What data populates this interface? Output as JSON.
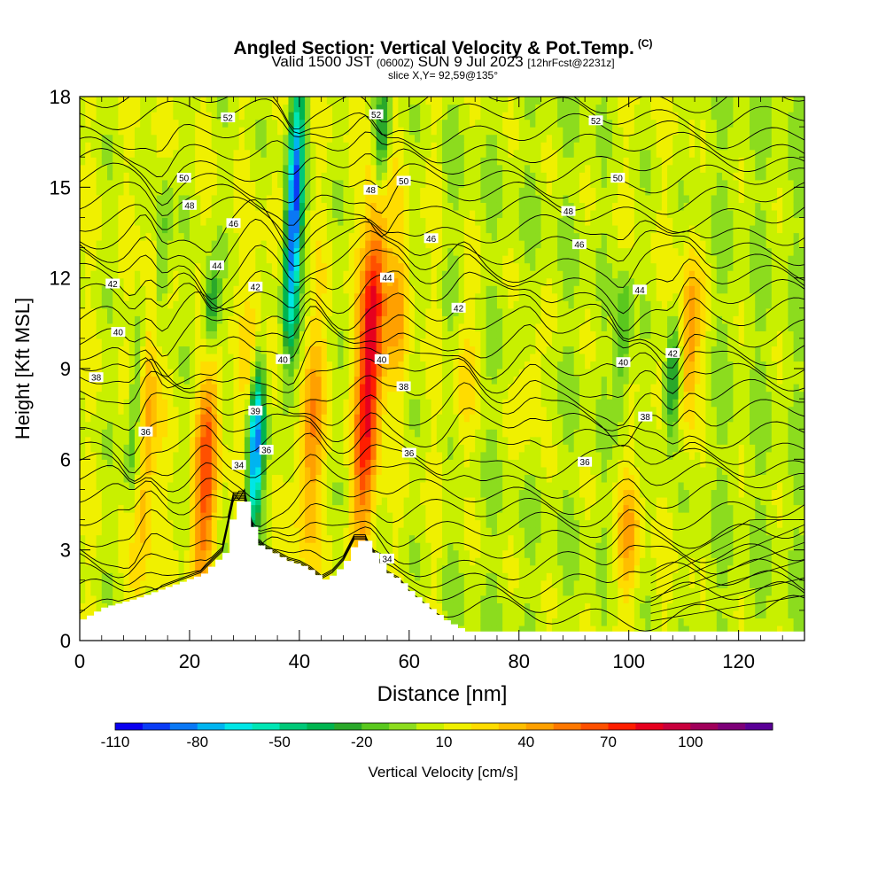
{
  "title": "Angled Section: Vertical Velocity & Pot.Temp.",
  "title_mark": "(C)",
  "subtitle_valid": "Valid 1500 JST",
  "subtitle_utc": "(0600Z)",
  "subtitle_date": "SUN 9 Jul 2023",
  "subtitle_fcst": "[12hrFcst@2231z]",
  "slice_label": "slice X,Y= 92,59@135°",
  "colorbar_title": "Vertical Velocity [cm/s]",
  "chart_data": {
    "type": "heatmap",
    "xlabel": "Distance [nm]",
    "ylabel": "Height [Kft MSL]",
    "xlim": [
      0,
      132
    ],
    "ylim": [
      0,
      18
    ],
    "x_ticks": [
      "0",
      "20",
      "40",
      "60",
      "80",
      "100",
      "120"
    ],
    "y_ticks": [
      "0",
      "3",
      "6",
      "9",
      "12",
      "15",
      "18"
    ],
    "colorbar": {
      "levels": [
        -110,
        -100,
        -90,
        -80,
        -70,
        -60,
        -50,
        -40,
        -30,
        -20,
        -10,
        0,
        10,
        20,
        30,
        40,
        50,
        60,
        70,
        80,
        90,
        100,
        110,
        120
      ],
      "colors": [
        "#0a00f0",
        "#0a3cf5",
        "#0a78f5",
        "#00b4f0",
        "#00e6e6",
        "#00e6b4",
        "#00c878",
        "#00b450",
        "#2aa82a",
        "#5ac81e",
        "#8cdc1e",
        "#c8f000",
        "#f0f000",
        "#ffdc00",
        "#ffbe00",
        "#ffa000",
        "#ff7800",
        "#ff5000",
        "#ff1e00",
        "#e6001e",
        "#c8003c",
        "#a0005a",
        "#7d0078",
        "#5a0096"
      ],
      "tick_labels": [
        "-110",
        "-80",
        "-50",
        "-20",
        "10",
        "40",
        "70",
        "100"
      ]
    },
    "terrain_kft": [
      [
        0,
        0.7
      ],
      [
        4,
        1.1
      ],
      [
        10,
        1.4
      ],
      [
        16,
        1.8
      ],
      [
        22,
        2.2
      ],
      [
        26,
        2.9
      ],
      [
        28,
        4.6
      ],
      [
        30,
        4.6
      ],
      [
        32,
        3.2
      ],
      [
        35,
        2.9
      ],
      [
        38,
        2.6
      ],
      [
        40,
        2.5
      ],
      [
        42,
        2.3
      ],
      [
        44,
        2.0
      ],
      [
        46,
        2.2
      ],
      [
        48,
        2.6
      ],
      [
        50,
        3.3
      ],
      [
        52,
        3.3
      ],
      [
        54,
        2.7
      ],
      [
        56,
        2.2
      ],
      [
        58,
        2.0
      ],
      [
        60,
        1.6
      ],
      [
        62,
        1.3
      ],
      [
        64,
        1.0
      ],
      [
        66,
        0.7
      ],
      [
        68,
        0.5
      ],
      [
        70,
        0.3
      ],
      [
        71,
        0.3
      ]
    ],
    "updrafts": [
      {
        "x": 12,
        "z0": 2,
        "z1": 12,
        "w": 40
      },
      {
        "x": 23,
        "z0": 2,
        "z1": 9,
        "w": 55
      },
      {
        "x": 32,
        "z0": 6,
        "z1": 12,
        "w": 30
      },
      {
        "x": 42,
        "z0": 3,
        "z1": 10,
        "w": 40
      },
      {
        "x": 53,
        "z0": 4,
        "z1": 15,
        "w": 85
      },
      {
        "x": 58,
        "z0": 9,
        "z1": 13,
        "w": 30
      },
      {
        "x": 70,
        "z0": 6,
        "z1": 11,
        "w": 20
      },
      {
        "x": 82,
        "z0": 7,
        "z1": 10,
        "w": 20
      },
      {
        "x": 100,
        "z0": 2,
        "z1": 5,
        "w": 30
      },
      {
        "x": 111,
        "z0": 8,
        "z1": 12,
        "w": 45
      }
    ],
    "downdrafts": [
      {
        "x": 10,
        "z0": 4,
        "z1": 10,
        "w": -30
      },
      {
        "x": 15,
        "z0": 10,
        "z1": 15,
        "w": -25
      },
      {
        "x": 24,
        "z0": 10,
        "z1": 12,
        "w": -45
      },
      {
        "x": 32,
        "z0": 4,
        "z1": 9,
        "w": -100
      },
      {
        "x": 39,
        "z0": 10,
        "z1": 18,
        "w": -95
      },
      {
        "x": 55,
        "z0": 15,
        "z1": 18,
        "w": -50
      },
      {
        "x": 99,
        "z0": 8,
        "z1": 12,
        "w": -25
      },
      {
        "x": 108,
        "z0": 7,
        "z1": 10,
        "w": -45
      }
    ],
    "theta_contours_C": [
      30,
      32,
      34,
      36,
      38,
      40,
      42,
      44,
      46,
      48,
      50,
      52
    ],
    "contour_labels": [
      {
        "text": "52",
        "x": 27,
        "z": 17.3
      },
      {
        "text": "52",
        "x": 54,
        "z": 17.4
      },
      {
        "text": "52",
        "x": 94,
        "z": 17.2
      },
      {
        "text": "50",
        "x": 19,
        "z": 15.3
      },
      {
        "text": "50",
        "x": 59,
        "z": 15.2
      },
      {
        "text": "50",
        "x": 98,
        "z": 15.3
      },
      {
        "text": "48",
        "x": 20,
        "z": 14.4
      },
      {
        "text": "48",
        "x": 53,
        "z": 14.9
      },
      {
        "text": "48",
        "x": 89,
        "z": 14.2
      },
      {
        "text": "46",
        "x": 28,
        "z": 13.8
      },
      {
        "text": "46",
        "x": 64,
        "z": 13.3
      },
      {
        "text": "46",
        "x": 91,
        "z": 13.1
      },
      {
        "text": "44",
        "x": 25,
        "z": 12.4
      },
      {
        "text": "44",
        "x": 56,
        "z": 12.0
      },
      {
        "text": "44",
        "x": 102,
        "z": 11.6
      },
      {
        "text": "42",
        "x": 6,
        "z": 11.8
      },
      {
        "text": "42",
        "x": 32,
        "z": 11.7
      },
      {
        "text": "42",
        "x": 69,
        "z": 11.0
      },
      {
        "text": "42",
        "x": 108,
        "z": 9.5
      },
      {
        "text": "40",
        "x": 7,
        "z": 10.2
      },
      {
        "text": "40",
        "x": 37,
        "z": 9.3
      },
      {
        "text": "40",
        "x": 55,
        "z": 9.3
      },
      {
        "text": "40",
        "x": 99,
        "z": 9.2
      },
      {
        "text": "38",
        "x": 3,
        "z": 8.7
      },
      {
        "text": "38",
        "x": 59,
        "z": 8.4
      },
      {
        "text": "38",
        "x": 103,
        "z": 7.4
      },
      {
        "text": "36",
        "x": 12,
        "z": 6.9
      },
      {
        "text": "36",
        "x": 34,
        "z": 6.3
      },
      {
        "text": "36",
        "x": 60,
        "z": 6.2
      },
      {
        "text": "36",
        "x": 92,
        "z": 5.9
      },
      {
        "text": "39",
        "x": 32,
        "z": 7.6
      },
      {
        "text": "34",
        "x": 29,
        "z": 5.8
      },
      {
        "text": "34",
        "x": 56,
        "z": 2.7
      }
    ]
  }
}
